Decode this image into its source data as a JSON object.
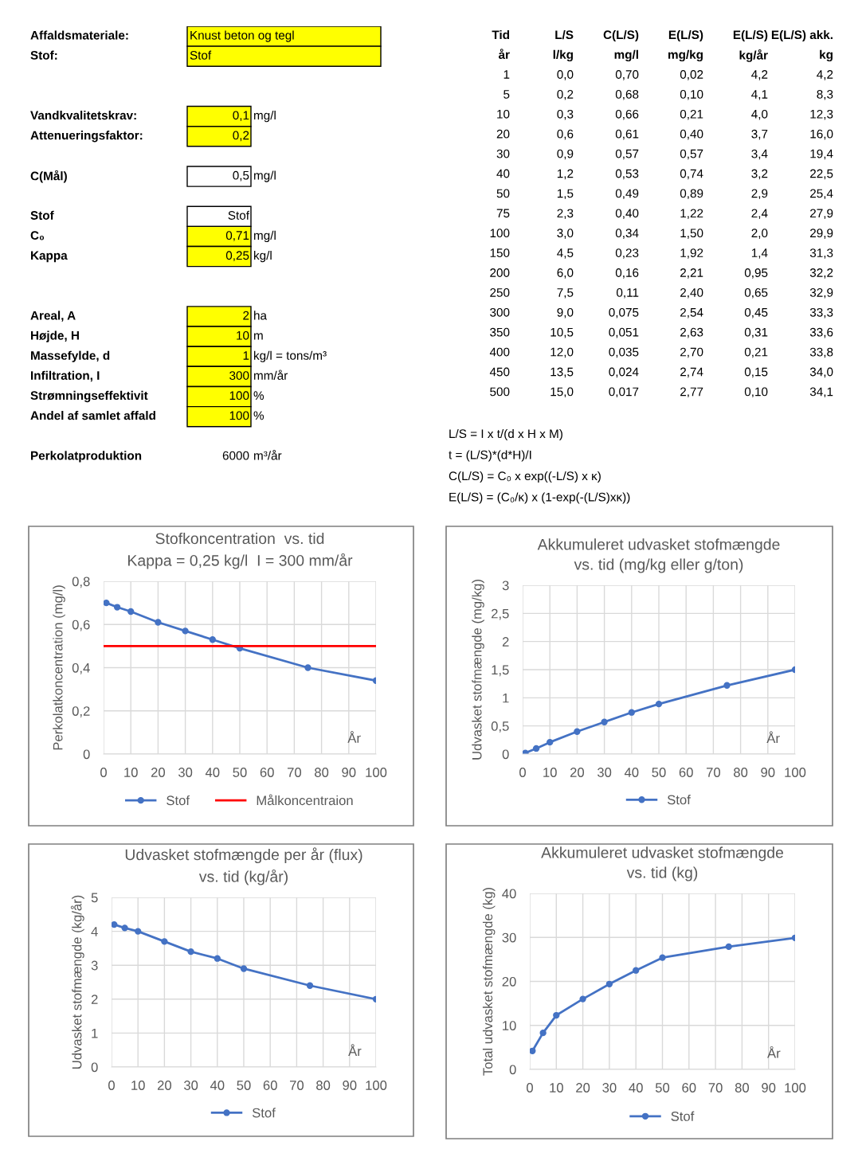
{
  "chart_data": [
    {
      "type": "other",
      "annotations": [
        "Affaldsmateriale:",
        "Knust beton og tegl",
        "Stof:",
        "Stof",
        "Vandkvalitetskrav:",
        "0,1",
        "mg/l",
        "Attenueringsfaktor:",
        "0,2",
        "C(Mål)",
        "0,5",
        "mg/l",
        "Stof",
        "Stof",
        "C₀",
        "0,71",
        "mg/l",
        "Kappa",
        "0,25",
        "kg/l",
        "Areal, A",
        "2",
        "ha",
        "Højde, H",
        "10",
        "m",
        "Massefylde, d",
        "1",
        "kg/l = tons/m³",
        "Infiltration, I",
        "300",
        "mm/år",
        "Strømningseffektivit",
        "100",
        "%",
        "Andel af samlet affald",
        "100",
        "%",
        "Perkolatproduktion",
        "6000",
        "m³/år"
      ]
    },
    {
      "type": "other",
      "annotations": [
        "Tid",
        "L/S",
        "C(L/S)",
        "E(L/S)",
        "E(L/S)",
        "E(L/S) akk.",
        "år",
        "l/kg",
        "mg/l",
        "mg/kg",
        "kg/år",
        "kg",
        "1",
        "0,0",
        "0,70",
        "0,02",
        "4,2",
        "4,2",
        "5",
        "0,2",
        "0,68",
        "0,10",
        "4,1",
        "8,3",
        "10",
        "0,3",
        "0,66",
        "0,21",
        "4,0",
        "12,3",
        "20",
        "0,6",
        "0,61",
        "0,40",
        "3,7",
        "16,0",
        "30",
        "0,9",
        "0,57",
        "0,57",
        "3,4",
        "19,4",
        "40",
        "1,2",
        "0,53",
        "0,74",
        "3,2",
        "22,5",
        "50",
        "1,5",
        "0,49",
        "0,89",
        "2,9",
        "25,4",
        "75",
        "2,3",
        "0,40",
        "1,22",
        "2,4",
        "27,9",
        "100",
        "3,0",
        "0,34",
        "1,50",
        "2,0",
        "29,9",
        "150",
        "4,5",
        "0,23",
        "1,92",
        "1,4",
        "31,3",
        "200",
        "6,0",
        "0,16",
        "2,21",
        "0,95",
        "32,2",
        "250",
        "7,5",
        "0,11",
        "2,40",
        "0,65",
        "32,9",
        "300",
        "9,0",
        "0,075",
        "2,54",
        "0,45",
        "33,3",
        "350",
        "10,5",
        "0,051",
        "2,63",
        "0,31",
        "33,6",
        "400",
        "12,0",
        "0,035",
        "2,70",
        "0,21",
        "33,8",
        "450",
        "13,5",
        "0,024",
        "2,74",
        "0,15",
        "34,0",
        "500",
        "15,0",
        "0,017",
        "2,77",
        "0,10",
        "34,1"
      ]
    },
    {
      "type": "other",
      "annotations": [
        "L/S = I x t/(d x H x M)",
        "t = (L/S)*(d*H)/I",
        "C(L/S) = C₀ x exp((-L/S) x κ)",
        "E(L/S) = (C₀/κ) x (1-exp(-(L/S)xκ))"
      ]
    },
    {
      "type": "line",
      "title": "Stofkoncentration  vs. tid",
      "subtitle": "Kappa = 0,25 kg/l  I = 300 mm/år",
      "ylabel": "Perkolatkoncentration (mg/l)",
      "annotations": [
        "År"
      ],
      "x": [
        1,
        5,
        10,
        20,
        30,
        40,
        50,
        75,
        100
      ],
      "series": [
        {
          "name": "Stof",
          "color": "#4472c4",
          "marker": "circle",
          "values": [
            0.7,
            0.68,
            0.66,
            0.61,
            0.57,
            0.53,
            0.49,
            0.4,
            0.34
          ]
        },
        {
          "name": "Målkoncentraion",
          "color": "#ff0000",
          "marker": "none",
          "x": [
            0,
            100
          ],
          "values": [
            0.5,
            0.5
          ]
        }
      ],
      "xlim": [
        0,
        100
      ],
      "xticks": [
        0,
        10,
        20,
        30,
        40,
        50,
        60,
        70,
        80,
        90,
        100
      ],
      "ylim": [
        0,
        0.8
      ],
      "yticks": [
        0,
        {
          "value": 0.2,
          "label": "0,2"
        },
        {
          "value": 0.4,
          "label": "0,4"
        },
        {
          "value": 0.6,
          "label": "0,6"
        },
        {
          "value": 0.8,
          "label": "0,8"
        }
      ],
      "grid": true,
      "legend": "bottom"
    },
    {
      "type": "line",
      "title": "Akkumuleret udvasket stofmængde\nvs. tid (mg/kg eller g/ton)",
      "ylabel": "Udvasket stofmængde (mg/kg)",
      "annotations": [
        "År"
      ],
      "x": [
        1,
        5,
        10,
        20,
        30,
        40,
        50,
        75,
        100
      ],
      "series": [
        {
          "name": "Stof",
          "color": "#4472c4",
          "marker": "circle",
          "values": [
            0.02,
            0.1,
            0.21,
            0.4,
            0.57,
            0.74,
            0.89,
            1.22,
            1.5
          ]
        }
      ],
      "xlim": [
        0,
        100
      ],
      "xticks": [
        0,
        10,
        20,
        30,
        40,
        50,
        60,
        70,
        80,
        90,
        100
      ],
      "ylim": [
        0,
        3
      ],
      "yticks": [
        0,
        {
          "value": 0.5,
          "label": "0,5"
        },
        1,
        {
          "value": 1.5,
          "label": "1,5"
        },
        2,
        {
          "value": 2.5,
          "label": "2,5"
        },
        3
      ],
      "grid": true,
      "legend": "bottom"
    },
    {
      "type": "line",
      "title": "Udvasket stofmængde per år (flux)\nvs. tid (kg/år)",
      "ylabel": "Udvasket stofmængde (kg/år)",
      "annotations": [
        "År"
      ],
      "x": [
        1,
        5,
        10,
        20,
        30,
        40,
        50,
        75,
        100
      ],
      "series": [
        {
          "name": "Stof",
          "color": "#4472c4",
          "marker": "circle",
          "values": [
            4.2,
            4.1,
            4.0,
            3.7,
            3.4,
            3.2,
            2.9,
            2.4,
            2.0
          ]
        }
      ],
      "xlim": [
        0,
        100
      ],
      "xticks": [
        0,
        10,
        20,
        30,
        40,
        50,
        60,
        70,
        80,
        90,
        100
      ],
      "ylim": [
        0,
        5
      ],
      "yticks": [
        0,
        1,
        2,
        3,
        4,
        5
      ],
      "grid": true,
      "legend": "bottom"
    },
    {
      "type": "line",
      "title": "Akkumuleret udvasket stofmængde\nvs. tid (kg)",
      "ylabel": "Total udvasket stofmængde (kg)",
      "annotations": [
        "År"
      ],
      "x": [
        1,
        5,
        10,
        20,
        30,
        40,
        50,
        75,
        100
      ],
      "series": [
        {
          "name": "Stof",
          "color": "#4472c4",
          "marker": "circle",
          "values": [
            4.2,
            8.3,
            12.3,
            16.0,
            19.4,
            22.5,
            25.4,
            27.9,
            29.9
          ]
        }
      ],
      "xlim": [
        0,
        100
      ],
      "xticks": [
        0,
        10,
        20,
        30,
        40,
        50,
        60,
        70,
        80,
        90,
        100
      ],
      "ylim": [
        0,
        40
      ],
      "yticks": [
        0,
        10,
        20,
        30,
        40
      ],
      "grid": true,
      "legend": "bottom"
    }
  ]
}
